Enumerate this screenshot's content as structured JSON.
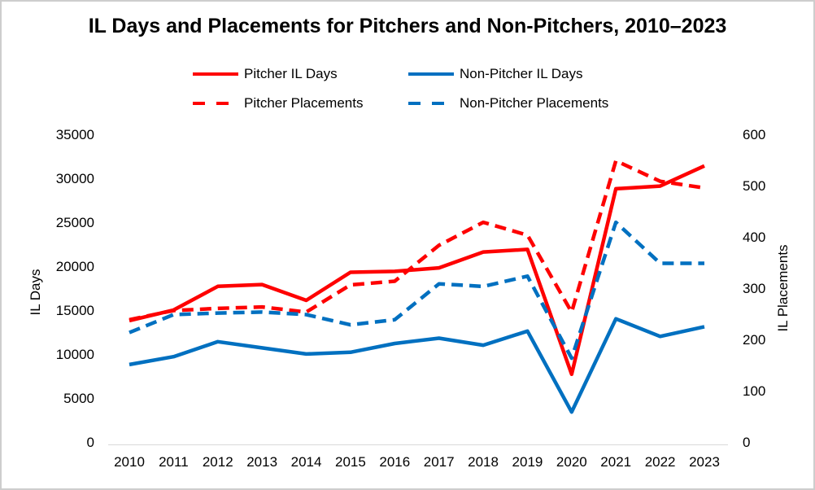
{
  "page": {
    "background": "#FFFFFF",
    "border_color": "#CDCDCD",
    "axis_line_color": "#D9D9D9"
  },
  "chart_data": {
    "type": "line",
    "title": "IL Days and Placements for Pitchers and Non-Pitchers, 2010–2023",
    "grid": "off",
    "legend_position": "top",
    "categories": [
      "2010",
      "2011",
      "2012",
      "2013",
      "2014",
      "2015",
      "2016",
      "2017",
      "2018",
      "2019",
      "2020",
      "2021",
      "2022",
      "2023"
    ],
    "axes": {
      "left": {
        "label": "IL Days",
        "min": 0,
        "max": 35000,
        "step": 5000,
        "tick_labels": [
          "0",
          "5000",
          "10000",
          "15000",
          "20000",
          "25000",
          "30000",
          "35000"
        ]
      },
      "right": {
        "label": "IL Placements",
        "min": 0,
        "max": 600,
        "step": 100,
        "tick_labels": [
          "0",
          "100",
          "200",
          "300",
          "400",
          "500",
          "600"
        ]
      }
    },
    "series": [
      {
        "name": "Pitcher IL Days",
        "axis": "left",
        "line_style": "solid",
        "color": "#FE0000",
        "values": [
          13900,
          15100,
          17800,
          18000,
          16200,
          19400,
          19500,
          19900,
          21700,
          22000,
          7800,
          28900,
          29200,
          31500
        ]
      },
      {
        "name": "Non-Pitcher IL Days",
        "axis": "left",
        "line_style": "solid",
        "color": "#0070C0",
        "values": [
          8900,
          9800,
          11500,
          10800,
          10100,
          10300,
          11300,
          11900,
          11100,
          12700,
          3500,
          14100,
          12100,
          13200
        ]
      },
      {
        "name": "Pitcher Placements",
        "axis": "right",
        "line_style": "dashed",
        "color": "#FE0000",
        "values": [
          240,
          258,
          262,
          265,
          255,
          308,
          315,
          385,
          430,
          405,
          255,
          550,
          510,
          497
        ]
      },
      {
        "name": "Non-Pitcher Placements",
        "axis": "right",
        "line_style": "dashed",
        "color": "#0070C0",
        "values": [
          215,
          250,
          253,
          255,
          250,
          230,
          240,
          310,
          305,
          325,
          165,
          430,
          350,
          350
        ]
      }
    ]
  }
}
